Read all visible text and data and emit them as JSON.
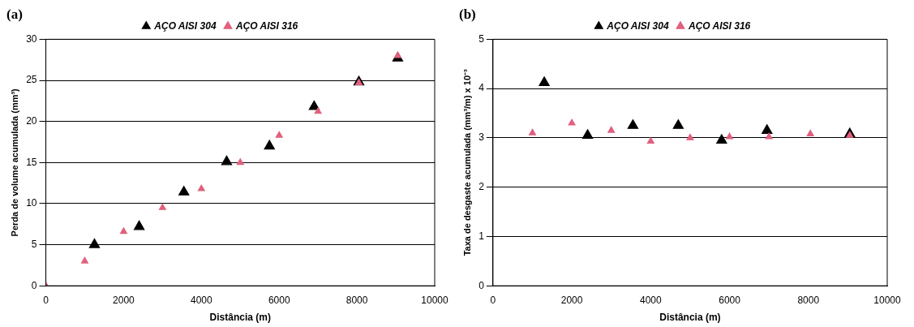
{
  "chart_data": [
    {
      "type": "scatter",
      "title": "(a)",
      "xlabel": "Distância (m)",
      "ylabel": "Perda de volume acumulada (mm³)",
      "xlim": [
        0,
        10000
      ],
      "xticks": [
        0,
        2000,
        4000,
        6000,
        8000,
        10000
      ],
      "ylim": [
        0,
        30
      ],
      "yticks": [
        0,
        5,
        10,
        15,
        20,
        25,
        30
      ],
      "grid": "y",
      "legend": "top",
      "marker": "triangle",
      "series": [
        {
          "name": "AÇO AISI 304",
          "color": "#000000",
          "x": [
            1250,
            2400,
            3550,
            4650,
            5750,
            6900,
            8050,
            9050
          ],
          "values": [
            5.0,
            7.2,
            11.4,
            15.1,
            17.0,
            21.8,
            24.8,
            27.7
          ]
        },
        {
          "name": "AÇO AISI 316",
          "color": "#e0607e",
          "x": [
            0,
            1000,
            2000,
            3000,
            4000,
            5000,
            6000,
            7000,
            8050,
            9050
          ],
          "values": [
            0,
            3.0,
            6.6,
            9.5,
            11.8,
            15.0,
            18.3,
            21.2,
            24.7,
            28.0
          ]
        }
      ]
    },
    {
      "type": "scatter",
      "title": "(b)",
      "xlabel": "Distância (m)",
      "ylabel": "Taxa de desgaste acumulada (mm³/m) x 10⁻³",
      "xlim": [
        0,
        10000
      ],
      "xticks": [
        0,
        2000,
        4000,
        6000,
        8000,
        10000
      ],
      "ylim": [
        0,
        5
      ],
      "yticks": [
        0,
        1,
        2,
        3,
        4,
        5
      ],
      "grid": "y",
      "legend": "top",
      "marker": "triangle",
      "series": [
        {
          "name": "AÇO AISI 304",
          "color": "#000000",
          "x": [
            1300,
            2400,
            3550,
            4700,
            5800,
            6950,
            9050
          ],
          "values": [
            4.12,
            3.05,
            3.25,
            3.25,
            2.95,
            3.15,
            3.08
          ]
        },
        {
          "name": "AÇO AISI 316",
          "color": "#e0607e",
          "x": [
            1000,
            2000,
            3000,
            4000,
            5000,
            6000,
            7000,
            8050,
            9050
          ],
          "values": [
            3.1,
            3.3,
            3.15,
            2.93,
            3.0,
            3.02,
            3.02,
            3.08,
            3.05
          ]
        }
      ]
    }
  ]
}
